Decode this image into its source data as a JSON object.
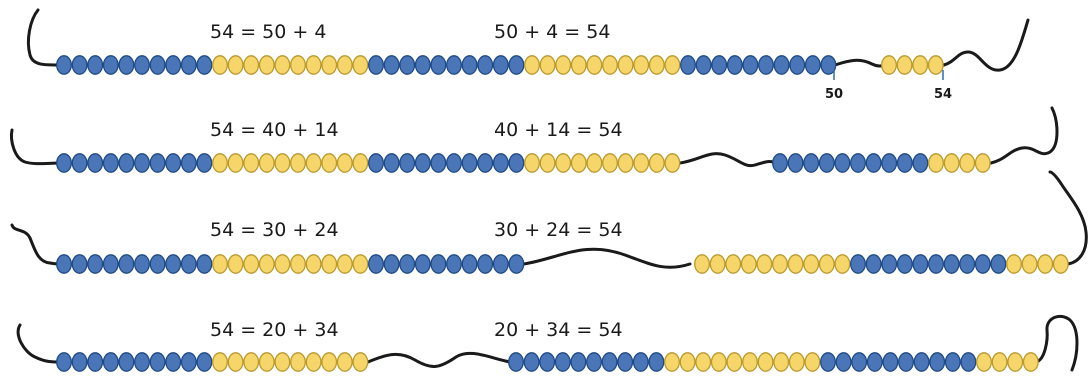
{
  "colors": {
    "blue_bead": "#4a76b8",
    "blue_bead_stroke": "#1f4a85",
    "yellow_bead": "#f6d56a",
    "yellow_bead_stroke": "#b89a2e",
    "string": "#1a1a1a",
    "marker": "#2a6db0"
  },
  "rows": [
    {
      "eq_left": "54 = 50 + 4",
      "eq_right": "50 + 4 = 54",
      "split_left": 50,
      "split_right": 4,
      "markers": [
        "50",
        "54"
      ]
    },
    {
      "eq_left": "54 = 40 + 14",
      "eq_right": "40 + 14 = 54",
      "split_left": 40,
      "split_right": 14,
      "markers": []
    },
    {
      "eq_left": "54 = 30 + 24",
      "eq_right": "30 + 24 = 54",
      "split_left": 30,
      "split_right": 24,
      "markers": []
    },
    {
      "eq_left": "54 = 20 + 34",
      "eq_right": "20 + 34 = 54",
      "split_left": 20,
      "split_right": 34,
      "markers": []
    }
  ]
}
